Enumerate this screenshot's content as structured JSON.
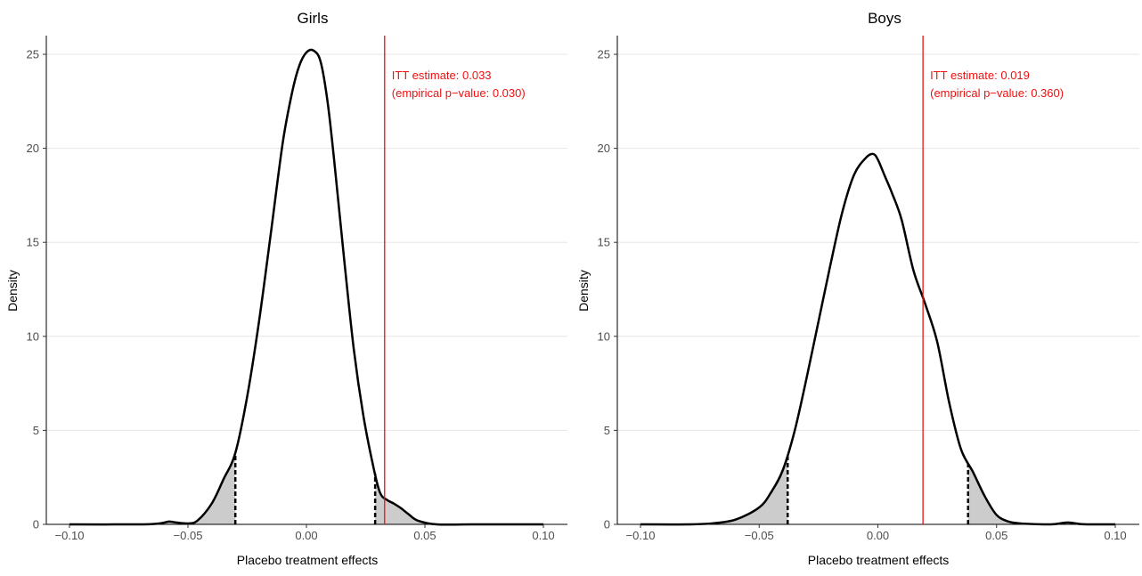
{
  "chart_data": [
    {
      "type": "area",
      "title": "Girls",
      "xlabel": "Placebo treatment effects",
      "ylabel": "Density",
      "xlim": [
        -0.1,
        0.1
      ],
      "ylim": [
        0,
        26
      ],
      "xticks": [
        -0.1,
        -0.05,
        0.0,
        0.05,
        0.1
      ],
      "xtick_labels": [
        "−0.10",
        "−0.05",
        "0.00",
        "0.05",
        "0.10"
      ],
      "yticks": [
        0,
        5,
        10,
        15,
        20,
        25
      ],
      "ytick_labels": [
        "0",
        "5",
        "10",
        "15",
        "20",
        "25"
      ],
      "grid": "horizontal",
      "line_color": "#000000",
      "shade_color": "#cccccc",
      "itt_color": "#ee1111",
      "itt_estimate": 0.033,
      "p_value": 0.03,
      "annotation": [
        "ITT estimate: 0.033",
        "(empirical p−value: 0.030)"
      ],
      "lower_critical": -0.03,
      "upper_critical": 0.029,
      "density": {
        "x": [
          -0.1,
          -0.07,
          -0.062,
          -0.058,
          -0.055,
          -0.05,
          -0.046,
          -0.04,
          -0.035,
          -0.03,
          -0.025,
          -0.02,
          -0.015,
          -0.01,
          -0.006,
          -0.003,
          0.0,
          0.003,
          0.006,
          0.009,
          0.012,
          0.016,
          0.02,
          0.024,
          0.028,
          0.031,
          0.034,
          0.037,
          0.04,
          0.043,
          0.047,
          0.055,
          0.07,
          0.1
        ],
        "y": [
          0.0,
          0.0,
          0.05,
          0.15,
          0.1,
          0.05,
          0.2,
          1.1,
          2.4,
          3.8,
          6.8,
          10.8,
          15.5,
          20.3,
          23.0,
          24.4,
          25.1,
          25.2,
          24.6,
          22.4,
          19.0,
          14.0,
          9.3,
          5.8,
          3.2,
          1.7,
          1.3,
          1.1,
          0.85,
          0.55,
          0.2,
          0.0,
          0.0,
          0.0
        ]
      }
    },
    {
      "type": "area",
      "title": "Boys",
      "xlabel": "Placebo treatment effects",
      "ylabel": "Density",
      "xlim": [
        -0.1,
        0.1
      ],
      "ylim": [
        0,
        26
      ],
      "xticks": [
        -0.1,
        -0.05,
        0.0,
        0.05,
        0.1
      ],
      "xtick_labels": [
        "−0.10",
        "−0.05",
        "0.00",
        "0.05",
        "0.10"
      ],
      "yticks": [
        0,
        5,
        10,
        15,
        20,
        25
      ],
      "ytick_labels": [
        "0",
        "5",
        "10",
        "15",
        "20",
        "25"
      ],
      "grid": "horizontal",
      "line_color": "#000000",
      "shade_color": "#cccccc",
      "itt_color": "#ee1111",
      "itt_estimate": 0.019,
      "p_value": 0.36,
      "annotation": [
        "ITT estimate: 0.019",
        "(empirical p−value: 0.360)"
      ],
      "lower_critical": -0.038,
      "upper_critical": 0.038,
      "density": {
        "x": [
          -0.1,
          -0.08,
          -0.07,
          -0.06,
          -0.05,
          -0.045,
          -0.04,
          -0.035,
          -0.03,
          -0.025,
          -0.02,
          -0.015,
          -0.01,
          -0.005,
          -0.002,
          0.0,
          0.003,
          0.006,
          0.01,
          0.015,
          0.02,
          0.025,
          0.03,
          0.035,
          0.04,
          0.045,
          0.05,
          0.055,
          0.06,
          0.07,
          0.075,
          0.08,
          0.085,
          0.09,
          0.1
        ],
        "y": [
          0.0,
          0.0,
          0.05,
          0.25,
          0.9,
          1.7,
          2.9,
          5.0,
          7.8,
          10.8,
          13.8,
          16.6,
          18.6,
          19.5,
          19.7,
          19.4,
          18.5,
          17.6,
          16.2,
          13.5,
          11.7,
          9.7,
          6.5,
          4.0,
          2.8,
          1.5,
          0.5,
          0.15,
          0.05,
          0.0,
          0.02,
          0.1,
          0.02,
          0.0,
          0.0
        ]
      }
    }
  ]
}
